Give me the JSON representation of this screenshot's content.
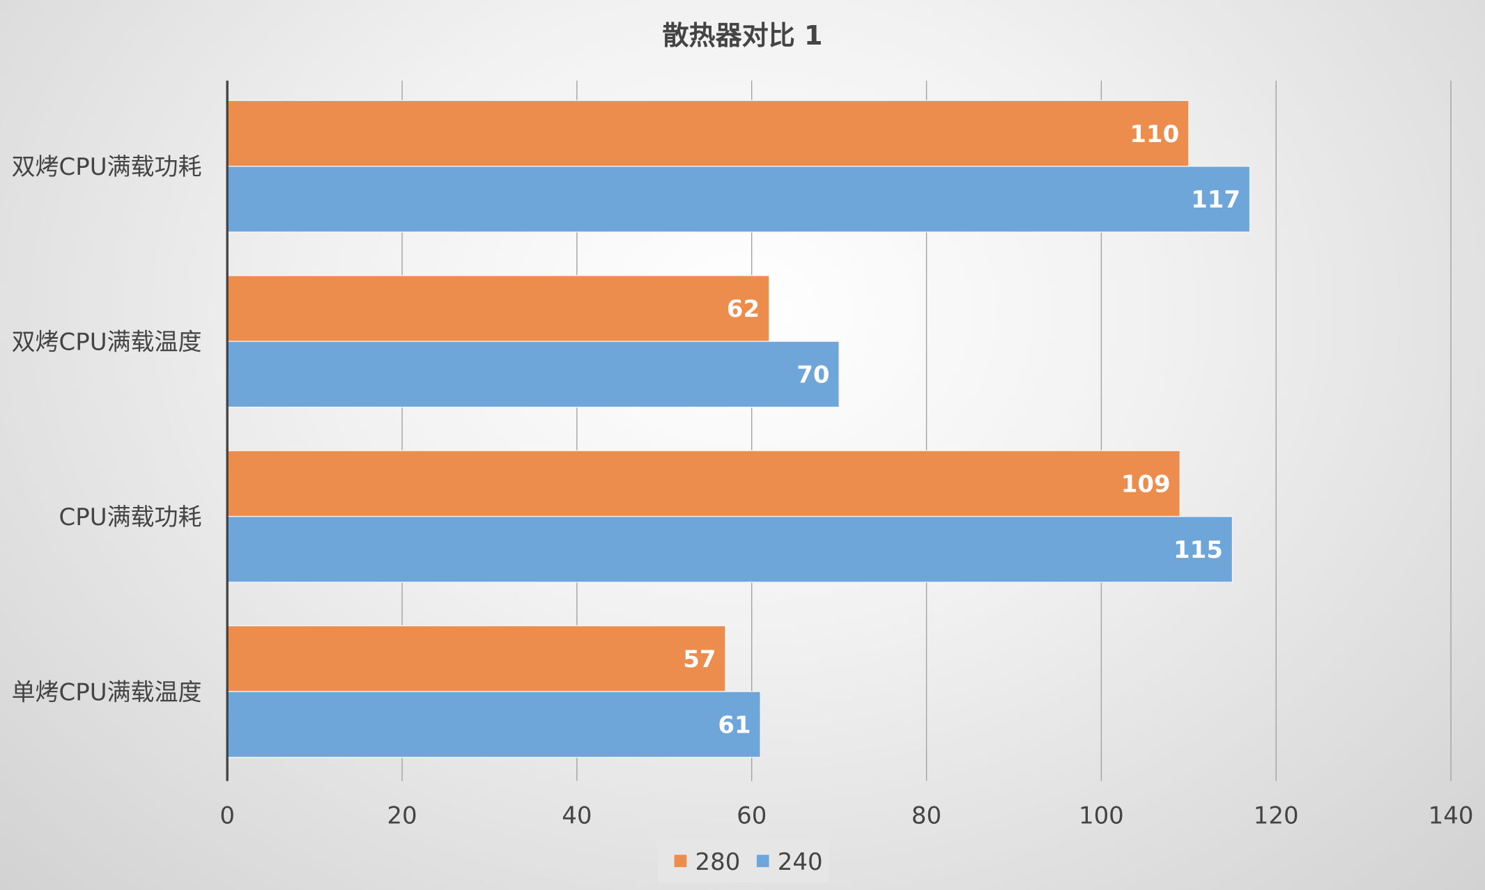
{
  "chart_data": {
    "type": "bar",
    "orientation": "horizontal",
    "title": "散热器对比 1",
    "categories": [
      "双烤CPU满载功耗",
      "双烤CPU满载温度",
      "CPU满载功耗",
      "单烤CPU满载温度"
    ],
    "series": [
      {
        "name": "280",
        "color": "#ED8D4D",
        "values": [
          110,
          62,
          109,
          57
        ]
      },
      {
        "name": "240",
        "color": "#6FA6DA",
        "values": [
          117,
          70,
          115,
          61
        ]
      }
    ],
    "xlim": [
      0,
      140
    ],
    "xticks": [
      "0",
      "20",
      "40",
      "60",
      "80",
      "100",
      "120",
      "140"
    ],
    "grid": true,
    "data_labels": true,
    "legend": "bottom"
  }
}
